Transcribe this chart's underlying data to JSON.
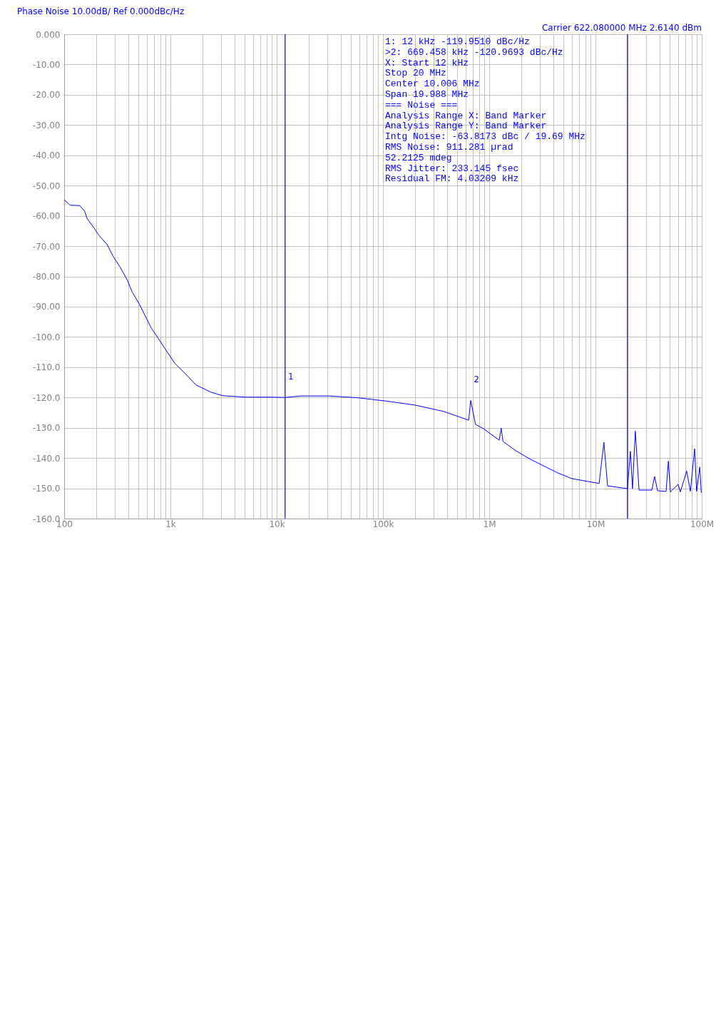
{
  "chart_data": {
    "type": "line",
    "title": "Phase Noise 10.00dB/ Ref 0.000dBc/Hz",
    "subtitle": "Carrier 622.080000 MHz     2.6140 dBm",
    "log": "x",
    "grid": true,
    "xlim": [
      100,
      100000000
    ],
    "xticks": [
      100,
      {
        "value": 200,
        "label": null
      },
      {
        "value": 300,
        "label": null
      },
      {
        "value": 400,
        "label": null
      },
      {
        "value": 500,
        "label": null
      },
      {
        "value": 600,
        "label": null
      },
      {
        "value": 700,
        "label": null
      },
      {
        "value": 800,
        "label": null
      },
      {
        "value": 900,
        "label": null
      },
      {
        "value": 1000,
        "label": "1k"
      },
      {
        "value": 2000,
        "label": null
      },
      {
        "value": 3000,
        "label": null
      },
      {
        "value": 4000,
        "label": null
      },
      {
        "value": 5000,
        "label": null
      },
      {
        "value": 6000,
        "label": null
      },
      {
        "value": 7000,
        "label": null
      },
      {
        "value": 8000,
        "label": null
      },
      {
        "value": 9000,
        "label": null
      },
      {
        "value": 10000,
        "label": "10k"
      },
      {
        "value": 20000,
        "label": null
      },
      {
        "value": 30000,
        "label": null
      },
      {
        "value": 40000,
        "label": null
      },
      {
        "value": 50000,
        "label": null
      },
      {
        "value": 60000,
        "label": null
      },
      {
        "value": 70000,
        "label": null
      },
      {
        "value": 80000,
        "label": null
      },
      {
        "value": 90000,
        "label": null
      },
      {
        "value": 100000,
        "label": "100k"
      },
      {
        "value": 200000,
        "label": null
      },
      {
        "value": 300000,
        "label": null
      },
      {
        "value": 400000,
        "label": null
      },
      {
        "value": 500000,
        "label": null
      },
      {
        "value": 600000,
        "label": null
      },
      {
        "value": 700000,
        "label": null
      },
      {
        "value": 800000,
        "label": null
      },
      {
        "value": 900000,
        "label": null
      },
      {
        "value": 1000000,
        "label": "1M"
      },
      {
        "value": 2000000,
        "label": null
      },
      {
        "value": 3000000,
        "label": null
      },
      {
        "value": 4000000,
        "label": null
      },
      {
        "value": 5000000,
        "label": null
      },
      {
        "value": 6000000,
        "label": null
      },
      {
        "value": 7000000,
        "label": null
      },
      {
        "value": 8000000,
        "label": null
      },
      {
        "value": 9000000,
        "label": null
      },
      {
        "value": 10000000,
        "label": "10M"
      },
      {
        "value": 20000000,
        "label": null
      },
      {
        "value": 30000000,
        "label": null
      },
      {
        "value": 40000000,
        "label": null
      },
      {
        "value": 50000000,
        "label": null
      },
      {
        "value": 60000000,
        "label": null
      },
      {
        "value": 70000000,
        "label": null
      },
      {
        "value": 80000000,
        "label": null
      },
      {
        "value": 90000000,
        "label": null
      },
      {
        "value": 100000000,
        "label": "100M"
      }
    ],
    "ylim": [
      -160,
      0
    ],
    "yticks": [
      {
        "value": 0,
        "label": "0.000"
      },
      {
        "value": -10,
        "label": "-10.00"
      },
      {
        "value": -20,
        "label": "-20.00"
      },
      {
        "value": -30,
        "label": "-30.00"
      },
      {
        "value": -40,
        "label": "-40.00"
      },
      {
        "value": -50,
        "label": "-50.00"
      },
      {
        "value": -60,
        "label": "-60.00"
      },
      {
        "value": -70,
        "label": "-70.00"
      },
      {
        "value": -80,
        "label": "-80.00"
      },
      {
        "value": -90,
        "label": "-90.00"
      },
      {
        "value": -100,
        "label": "-100.0"
      },
      {
        "value": -110,
        "label": "-110.0"
      },
      {
        "value": -120,
        "label": "-120.0"
      },
      {
        "value": -130,
        "label": "-130.0"
      },
      {
        "value": -140,
        "label": "-140.0"
      },
      {
        "value": -150,
        "label": "-150.0"
      },
      {
        "value": -160,
        "label": "-160.0"
      }
    ],
    "series": [
      {
        "color": "#0000ff",
        "x": [
          100,
          114,
          140,
          156,
          164,
          191,
          212,
          254,
          289,
          337,
          394,
          437,
          509,
          580,
          659,
          769,
          898,
          1104,
          1359,
          1747,
          2390,
          3089,
          5170,
          8660,
          12000,
          16900,
          31400,
          58200,
          108000,
          200000,
          372000,
          641000,
          669458,
          743000,
          883000,
          1241000,
          1297000,
          1346000,
          1746000,
          2377000,
          4408000,
          6006000,
          10820000,
          12000000,
          13000000,
          20000000,
          21300000,
          22300000,
          23700000,
          25700000,
          33900000,
          36000000,
          38400000,
          46200000,
          48500000,
          50700000,
          59900000,
          62900000,
          72100000,
          78200000,
          85700000,
          89500000,
          95800000,
          99000000
        ],
        "values": [
          -54.7,
          -56.5,
          -56.6,
          -58.5,
          -60.8,
          -64.0,
          -66.4,
          -69.5,
          -73.4,
          -77.0,
          -81.3,
          -85.2,
          -89.1,
          -93.1,
          -97.0,
          -100.5,
          -104.1,
          -108.8,
          -111.9,
          -115.9,
          -118.2,
          -119.4,
          -119.9,
          -119.9,
          -120.0,
          -119.5,
          -119.5,
          -120.1,
          -121.2,
          -122.5,
          -124.6,
          -127.5,
          -121.0,
          -128.9,
          -130.3,
          -134.1,
          -130.1,
          -134.5,
          -137.4,
          -140.2,
          -144.9,
          -146.8,
          -148.4,
          -134.8,
          -149.2,
          -150.1,
          -137.8,
          -150.1,
          -131.1,
          -150.6,
          -150.6,
          -146.1,
          -150.8,
          -151.0,
          -141.0,
          -151.2,
          -148.7,
          -151.2,
          -144.3,
          -151.0,
          -136.9,
          -151.0,
          -143.0,
          -151.5
        ]
      }
    ],
    "ref_lines": [
      {
        "axis": "x",
        "value": 12000,
        "color": "#0000ff"
      },
      {
        "axis": "x",
        "value": 20000000,
        "color": "#0000ff"
      }
    ],
    "annotations": [
      {
        "text": "1",
        "x": 12000,
        "y": -120.0
      },
      {
        "text": "2",
        "x": 669458,
        "y": -121.0
      },
      "1:  12 kHz      -119.9510 dBc/Hz",
      ">2:  669.458 kHz  -120.9693 dBc/Hz",
      " X: Start 12 kHz",
      "     Stop 20 MHz",
      "   Center 10.006 MHz",
      "     Span 19.988 MHz",
      "=== Noise ===",
      "Analysis Range X: Band Marker",
      "Analysis Range Y: Band Marker",
      "Intg Noise: -63.8173 dBc / 19.69 MHz",
      " RMS Noise: 911.281 µrad",
      "            52.2125 mdeg",
      "RMS Jitter: 233.145 fsec",
      "Residual FM: 4.03209 kHz"
    ]
  }
}
